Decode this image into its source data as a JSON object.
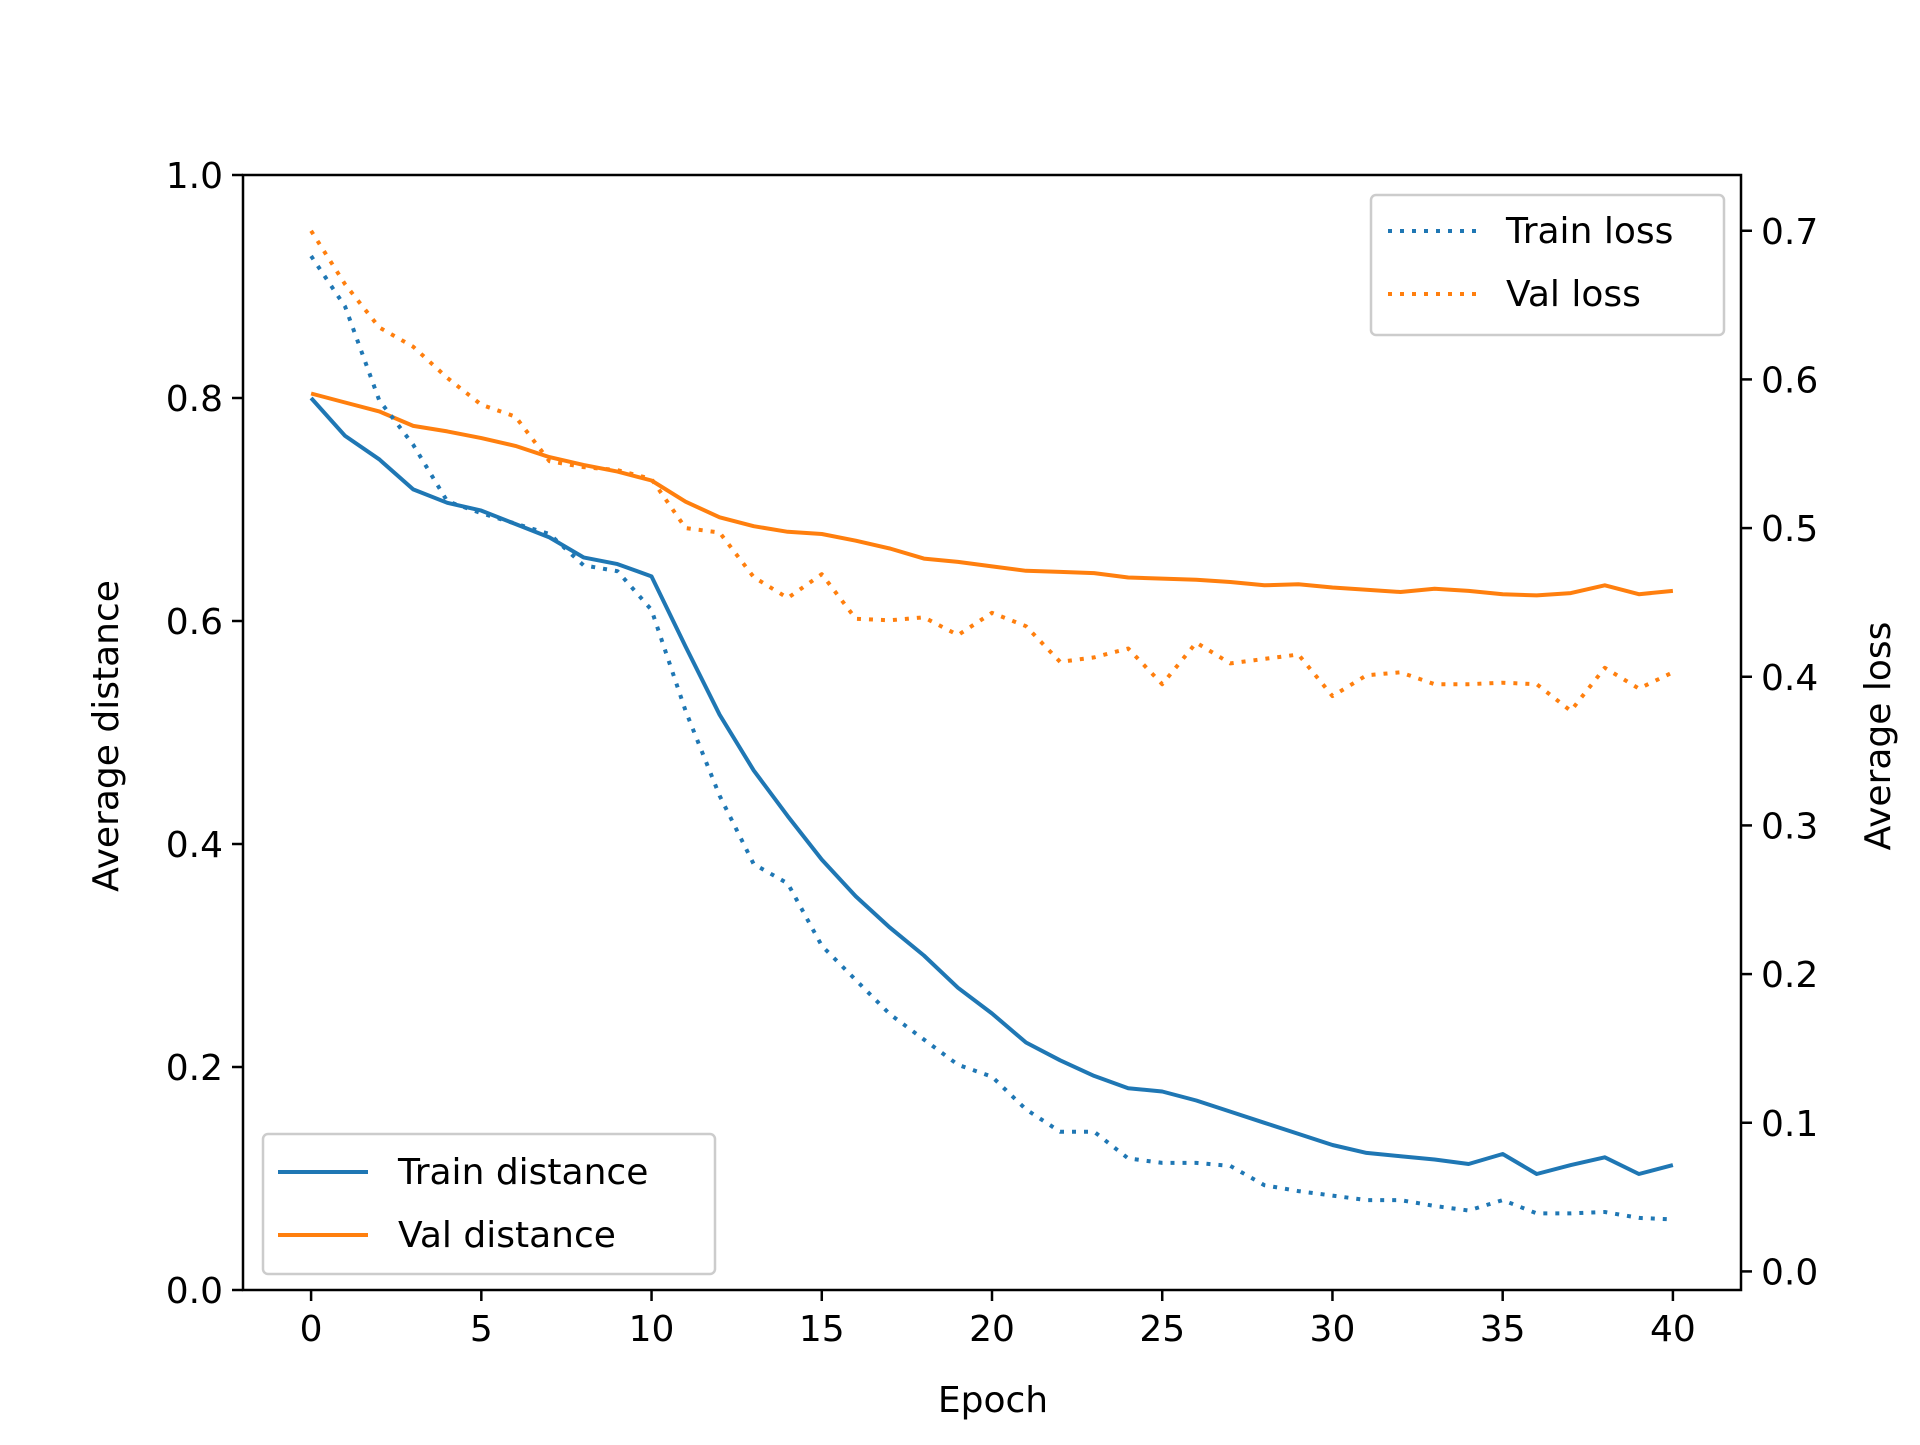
{
  "chart_data": {
    "type": "line",
    "xlabel": "Epoch",
    "ylabel": "Average distance",
    "y2label": "Average loss",
    "xlim": [
      -2,
      42
    ],
    "ylim": [
      0,
      1.0
    ],
    "y2lim": [
      -0.0125,
      0.7375
    ],
    "xticks": [
      0,
      5,
      10,
      15,
      20,
      25,
      30,
      35,
      40
    ],
    "yticks": [
      0.0,
      0.2,
      0.4,
      0.6,
      0.8,
      1.0
    ],
    "y2ticks": [
      0.0,
      0.1,
      0.2,
      0.3,
      0.4,
      0.5,
      0.6,
      0.7
    ],
    "xtick_labels": [
      "0",
      "5",
      "10",
      "15",
      "20",
      "25",
      "30",
      "35",
      "40"
    ],
    "ytick_labels": [
      "0.0",
      "0.2",
      "0.4",
      "0.6",
      "0.8",
      "1.0"
    ],
    "y2tick_labels": [
      "0.0",
      "0.1",
      "0.2",
      "0.3",
      "0.4",
      "0.5",
      "0.6",
      "0.7"
    ],
    "grid": false,
    "colors": {
      "blue": "#1f77b4",
      "orange": "#ff7f0e"
    },
    "legend_distance": {
      "placement": "lower-left",
      "entries": [
        "Train distance",
        "Val distance"
      ]
    },
    "legend_loss": {
      "placement": "upper-right",
      "entries": [
        "Train loss",
        "Val loss"
      ]
    },
    "x": [
      0,
      1,
      2,
      3,
      4,
      5,
      6,
      7,
      8,
      9,
      10,
      11,
      12,
      13,
      14,
      15,
      16,
      17,
      18,
      19,
      20,
      21,
      22,
      23,
      24,
      25,
      26,
      27,
      28,
      29,
      30,
      31,
      32,
      33,
      34,
      35,
      36,
      37,
      38,
      39,
      40
    ],
    "series": [
      {
        "name": "Train distance",
        "axis": "left",
        "style": "solid",
        "color": "#1f77b4",
        "values": [
          0.8,
          0.766,
          0.745,
          0.718,
          0.706,
          0.699,
          0.687,
          0.675,
          0.657,
          0.651,
          0.64,
          0.577,
          0.516,
          0.466,
          0.425,
          0.386,
          0.353,
          0.325,
          0.3,
          0.271,
          0.248,
          0.222,
          0.206,
          0.192,
          0.181,
          0.178,
          0.17,
          0.16,
          0.15,
          0.14,
          0.13,
          0.123,
          0.12,
          0.117,
          0.113,
          0.122,
          0.104,
          0.112,
          0.119,
          0.104,
          0.112
        ]
      },
      {
        "name": "Val distance",
        "axis": "left",
        "style": "solid",
        "color": "#ff7f0e",
        "values": [
          0.804,
          0.796,
          0.788,
          0.775,
          0.77,
          0.764,
          0.757,
          0.747,
          0.74,
          0.734,
          0.726,
          0.707,
          0.693,
          0.685,
          0.68,
          0.678,
          0.672,
          0.665,
          0.656,
          0.653,
          0.649,
          0.645,
          0.644,
          0.643,
          0.639,
          0.638,
          0.637,
          0.635,
          0.632,
          0.633,
          0.63,
          0.628,
          0.626,
          0.629,
          0.627,
          0.624,
          0.623,
          0.625,
          0.632,
          0.624,
          0.627
        ]
      },
      {
        "name": "Train loss",
        "axis": "right",
        "style": "dotted",
        "color": "#1f77b4",
        "values": [
          0.683,
          0.649,
          0.586,
          0.556,
          0.518,
          0.51,
          0.503,
          0.496,
          0.475,
          0.471,
          0.445,
          0.377,
          0.32,
          0.274,
          0.261,
          0.219,
          0.196,
          0.173,
          0.156,
          0.139,
          0.131,
          0.109,
          0.094,
          0.094,
          0.076,
          0.073,
          0.073,
          0.071,
          0.058,
          0.054,
          0.051,
          0.048,
          0.048,
          0.044,
          0.041,
          0.048,
          0.039,
          0.039,
          0.04,
          0.036,
          0.035
        ]
      },
      {
        "name": "Val loss",
        "axis": "right",
        "style": "dotted",
        "color": "#ff7f0e",
        "values": [
          0.7,
          0.664,
          0.635,
          0.622,
          0.601,
          0.583,
          0.575,
          0.545,
          0.541,
          0.539,
          0.533,
          0.5,
          0.497,
          0.467,
          0.453,
          0.469,
          0.439,
          0.438,
          0.44,
          0.428,
          0.443,
          0.434,
          0.41,
          0.413,
          0.419,
          0.395,
          0.423,
          0.409,
          0.412,
          0.415,
          0.387,
          0.401,
          0.403,
          0.395,
          0.395,
          0.396,
          0.395,
          0.377,
          0.406,
          0.392,
          0.403
        ]
      }
    ]
  }
}
